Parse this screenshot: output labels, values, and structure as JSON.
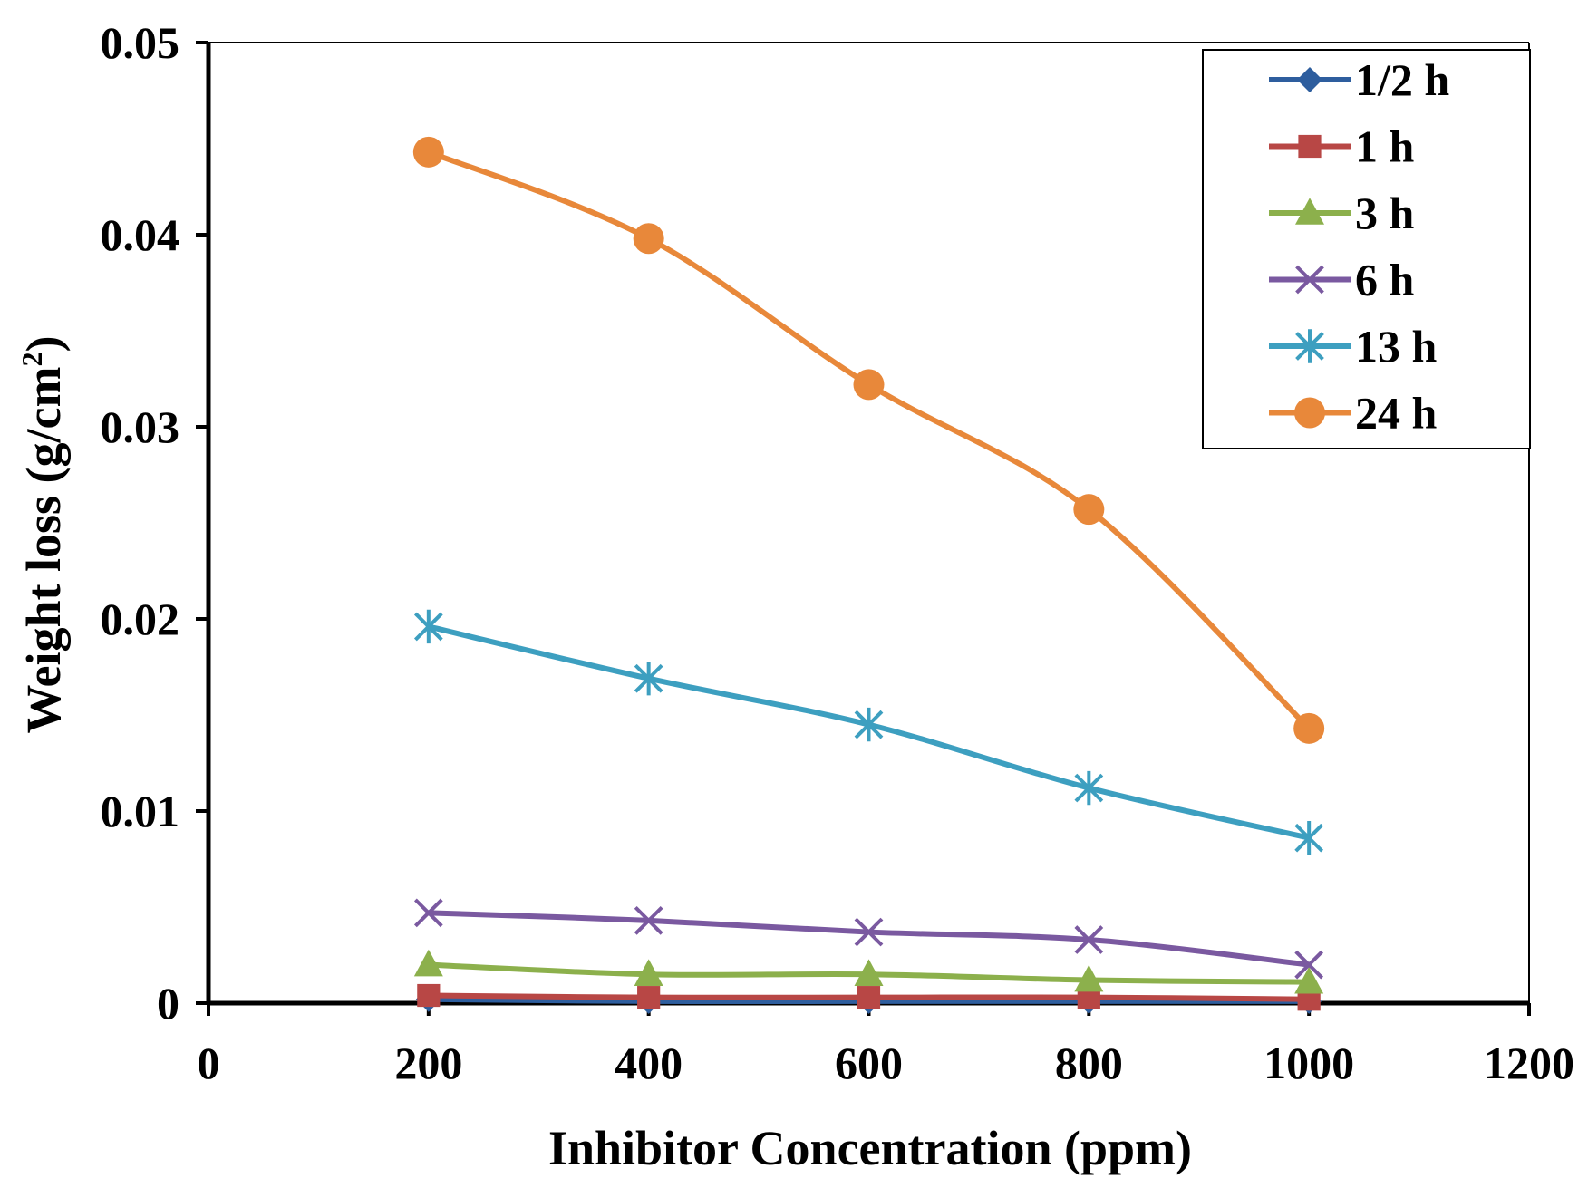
{
  "chart_data": {
    "type": "line",
    "title": "",
    "xlabel": "Inhibitor Concentration (ppm)",
    "ylabel_main": "Weight loss (g/cm",
    "ylabel_sup": "2",
    "ylabel_close": ")",
    "xlim": [
      0,
      1200
    ],
    "ylim": [
      0,
      0.05
    ],
    "xticks": [
      0,
      200,
      400,
      600,
      800,
      1000,
      1200
    ],
    "xtick_labels": [
      "0",
      "200",
      "400",
      "600",
      "800",
      "1000",
      "1200"
    ],
    "yticks": [
      0,
      0.01,
      0.02,
      0.03,
      0.04,
      0.05
    ],
    "ytick_labels": [
      "0",
      "0.01",
      "0.02",
      "0.03",
      "0.04",
      "0.05"
    ],
    "grid": false,
    "legend_position": "top-right",
    "x": [
      200,
      400,
      600,
      800,
      1000
    ],
    "series": [
      {
        "name": "1/2 h",
        "color": "#2e5e9e",
        "marker": "diamond",
        "values": [
          0.0002,
          0.0001,
          0.0001,
          0.0001,
          0.0001
        ]
      },
      {
        "name": "1 h",
        "color": "#b84745",
        "marker": "square",
        "values": [
          0.0004,
          0.0003,
          0.0003,
          0.0003,
          0.0002
        ]
      },
      {
        "name": "3 h",
        "color": "#8cb04c",
        "marker": "triangle",
        "values": [
          0.002,
          0.0015,
          0.0015,
          0.0012,
          0.0011
        ]
      },
      {
        "name": "6 h",
        "color": "#7a59a0",
        "marker": "x",
        "values": [
          0.0047,
          0.0043,
          0.0037,
          0.0033,
          0.002
        ]
      },
      {
        "name": "13 h",
        "color": "#3d9fc0",
        "marker": "asterisk",
        "values": [
          0.0196,
          0.0169,
          0.0145,
          0.0112,
          0.0086
        ]
      },
      {
        "name": "24 h",
        "color": "#e8883a",
        "marker": "circle",
        "values": [
          0.0443,
          0.0398,
          0.0322,
          0.0257,
          0.0143
        ]
      }
    ]
  }
}
